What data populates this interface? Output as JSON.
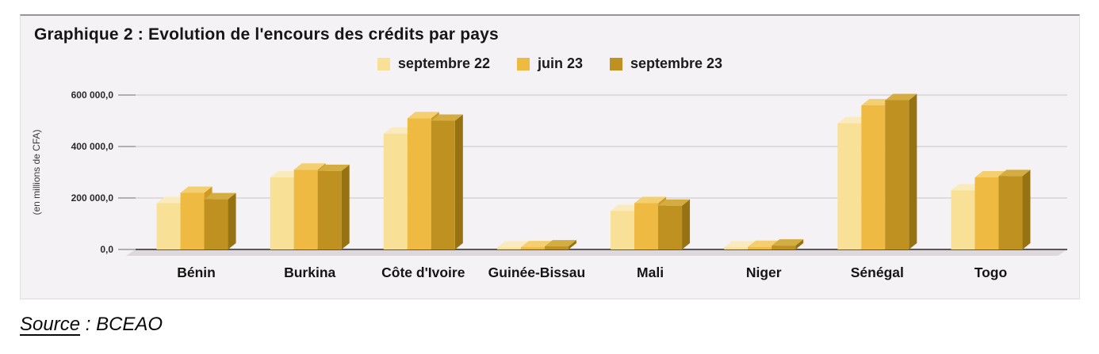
{
  "chart_data": {
    "type": "bar",
    "title": "Graphique 2 : Evolution de l'encours des crédits par pays",
    "ylabel": "(en millions de CFA)",
    "ylim": [
      0,
      600000
    ],
    "grid": true,
    "legend_position": "top-center",
    "categories": [
      "Bénin",
      "Burkina",
      "Côte d'Ivoire",
      "Guinée-Bissau",
      "Mali",
      "Niger",
      "Sénégal",
      "Togo"
    ],
    "yticks": [
      {
        "value": 0,
        "label": "0,0"
      },
      {
        "value": 200000,
        "label": "200 000,0"
      },
      {
        "value": 400000,
        "label": "400 000,0"
      },
      {
        "value": 600000,
        "label": "600 000,0"
      }
    ],
    "series": [
      {
        "name": "septembre 22",
        "color": {
          "front": "#f8e096",
          "top": "#faebbe",
          "side": "#dfc06e"
        },
        "values": [
          180000,
          280000,
          450000,
          6000,
          150000,
          8000,
          490000,
          230000
        ]
      },
      {
        "name": "juin 23",
        "color": {
          "front": "#efba42",
          "top": "#f4cf72",
          "side": "#ce9a22"
        },
        "values": [
          220000,
          310000,
          510000,
          9000,
          180000,
          10000,
          560000,
          280000
        ]
      },
      {
        "name": "septembre 23",
        "color": {
          "front": "#be9120",
          "top": "#d3ac42",
          "side": "#977212"
        },
        "values": [
          195000,
          305000,
          500000,
          12000,
          170000,
          15000,
          580000,
          285000
        ]
      }
    ],
    "styles": {
      "panel_bg": "#f5f2f5",
      "gridline": "#d6d2d6",
      "tick": "#9a9a9a",
      "baseline": "#5a575a",
      "floor": "#dcd8dc",
      "text": "#2a2a2a"
    }
  },
  "footer": {
    "source_label": "Source",
    "separator": " : ",
    "value": "BCEAO"
  }
}
